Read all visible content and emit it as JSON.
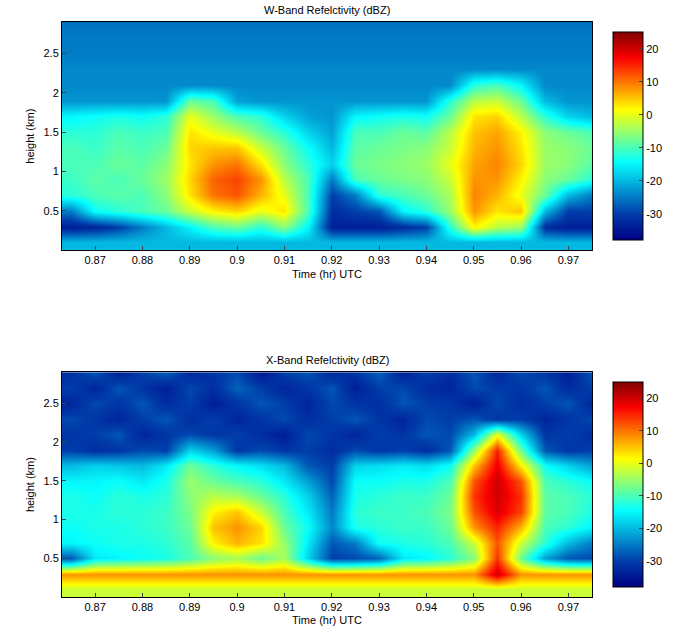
{
  "chart_data": [
    {
      "type": "heatmap",
      "title": "W-Band Refelctivity (dBZ)",
      "x_label": "Time (hr) UTC",
      "y_label": "height (km)",
      "xlim": [
        0.863,
        0.975
      ],
      "xticks": [
        0.87,
        0.88,
        0.89,
        0.9,
        0.91,
        0.92,
        0.93,
        0.94,
        0.95,
        0.96,
        0.97
      ],
      "ylim": [
        0,
        2.9
      ],
      "yticks": [
        0.5,
        1,
        1.5,
        2,
        2.5
      ],
      "zlim": [
        -38,
        25
      ],
      "zticks": [
        -30,
        -20,
        -10,
        0,
        10,
        20
      ],
      "x": [
        0.865,
        0.87,
        0.875,
        0.88,
        0.885,
        0.89,
        0.895,
        0.9,
        0.905,
        0.91,
        0.915,
        0.92,
        0.925,
        0.93,
        0.935,
        0.94,
        0.945,
        0.95,
        0.955,
        0.96,
        0.965,
        0.97,
        0.975
      ],
      "y": [
        0.1,
        0.3,
        0.5,
        0.7,
        0.9,
        1.1,
        1.3,
        1.5,
        1.7,
        1.9,
        2.1,
        2.3,
        2.5,
        2.7,
        2.9
      ],
      "z": [
        [
          -20,
          -20,
          -20,
          -20,
          -20,
          -20,
          -20,
          -20,
          -20,
          -20,
          -20,
          -20,
          -20,
          -20,
          -20,
          -20,
          -20,
          -20,
          -20,
          -20,
          -20,
          -20,
          -20
        ],
        [
          -34,
          -33,
          -30,
          -25,
          -20,
          -15,
          -10,
          -8,
          -12,
          -6,
          -15,
          -34,
          -34,
          -34,
          -32,
          -30,
          -12,
          2,
          -3,
          -5,
          -32,
          -34,
          -34
        ],
        [
          -25,
          -14,
          -12,
          -10,
          -8,
          -2,
          2,
          4,
          0,
          3,
          -10,
          -32,
          -30,
          -28,
          -15,
          -12,
          -5,
          8,
          3,
          5,
          -20,
          -30,
          -30
        ],
        [
          -12,
          -10,
          -9,
          -10,
          -6,
          3,
          10,
          12,
          6,
          0,
          -10,
          -30,
          -25,
          -12,
          -10,
          -8,
          -4,
          9,
          6,
          0,
          -8,
          -20,
          -25
        ],
        [
          -11,
          -9,
          -10,
          -8,
          -5,
          4,
          11,
          13,
          8,
          -3,
          -10,
          -25,
          -10,
          -8,
          -7,
          -6,
          -2,
          8,
          8,
          2,
          -6,
          -8,
          -12
        ],
        [
          -10,
          -10,
          -8,
          -9,
          -6,
          3,
          8,
          10,
          3,
          -6,
          -12,
          -18,
          -8,
          -7,
          -6,
          -5,
          0,
          7,
          9,
          4,
          -5,
          -6,
          -9
        ],
        [
          -10,
          -11,
          -9,
          -10,
          -8,
          4,
          5,
          5,
          -2,
          -8,
          -14,
          -20,
          -9,
          -8,
          -7,
          -6,
          -2,
          6,
          8,
          3,
          -5,
          -6,
          -8
        ],
        [
          -12,
          -12,
          -10,
          -11,
          -10,
          3,
          0,
          -3,
          -8,
          -12,
          -18,
          -22,
          -10,
          -10,
          -8,
          -9,
          -3,
          5,
          7,
          2,
          -6,
          -8,
          -10
        ],
        [
          -15,
          -14,
          -13,
          -14,
          -12,
          0,
          -5,
          -10,
          -12,
          -18,
          -22,
          -23,
          -15,
          -14,
          -13,
          -14,
          -8,
          3,
          4,
          -3,
          -12,
          -18,
          -20
        ],
        [
          -23,
          -23,
          -23,
          -23,
          -23,
          -8,
          -10,
          -22,
          -23,
          -23,
          -23,
          -23,
          -23,
          -23,
          -23,
          -23,
          -12,
          -3,
          -2,
          -8,
          -20,
          -23,
          -23
        ],
        [
          -24,
          -24,
          -24,
          -24,
          -24,
          -24,
          -24,
          -24,
          -24,
          -24,
          -24,
          -24,
          -24,
          -24,
          -24,
          -24,
          -24,
          -12,
          -10,
          -15,
          -24,
          -24,
          -24
        ],
        [
          -24,
          -24,
          -24,
          -24,
          -24,
          -24,
          -24,
          -24,
          -24,
          -24,
          -24,
          -24,
          -24,
          -24,
          -24,
          -24,
          -24,
          -24,
          -24,
          -24,
          -24,
          -24,
          -24
        ],
        [
          -25,
          -25,
          -25,
          -25,
          -25,
          -25,
          -25,
          -25,
          -25,
          -25,
          -25,
          -25,
          -25,
          -25,
          -25,
          -25,
          -25,
          -25,
          -25,
          -25,
          -25,
          -25,
          -25
        ],
        [
          -25,
          -25,
          -25,
          -25,
          -25,
          -25,
          -25,
          -25,
          -25,
          -25,
          -25,
          -25,
          -25,
          -25,
          -25,
          -25,
          -25,
          -25,
          -25,
          -25,
          -25,
          -25,
          -25
        ],
        [
          -26,
          -26,
          -26,
          -26,
          -26,
          -26,
          -26,
          -26,
          -26,
          -26,
          -26,
          -26,
          -26,
          -26,
          -26,
          -26,
          -26,
          -26,
          -26,
          -26,
          -26,
          -26,
          -26
        ]
      ]
    },
    {
      "type": "heatmap",
      "title": "X-Band Refelctivity (dBZ)",
      "x_label": "Time (hr) UTC",
      "y_label": "height (km)",
      "xlim": [
        0.863,
        0.975
      ],
      "xticks": [
        0.87,
        0.88,
        0.89,
        0.9,
        0.91,
        0.92,
        0.93,
        0.94,
        0.95,
        0.96,
        0.97
      ],
      "ylim": [
        0,
        2.9
      ],
      "yticks": [
        0.5,
        1,
        1.5,
        2,
        2.5
      ],
      "zlim": [
        -38,
        25
      ],
      "zticks": [
        -30,
        -20,
        -10,
        0,
        10,
        20
      ],
      "x": [
        0.865,
        0.87,
        0.875,
        0.88,
        0.885,
        0.89,
        0.895,
        0.9,
        0.905,
        0.91,
        0.915,
        0.92,
        0.925,
        0.93,
        0.935,
        0.94,
        0.945,
        0.95,
        0.955,
        0.96,
        0.965,
        0.97,
        0.975
      ],
      "y": [
        0.1,
        0.3,
        0.5,
        0.7,
        0.9,
        1.1,
        1.3,
        1.5,
        1.7,
        1.9,
        2.1,
        2.3,
        2.5,
        2.7,
        2.9
      ],
      "z": [
        [
          -2,
          -2,
          -2,
          -2,
          -2,
          -2,
          -2,
          -2,
          -2,
          -2,
          -2,
          -2,
          -2,
          -2,
          -2,
          -2,
          -2,
          -2,
          -2,
          -2,
          -2,
          -2,
          -2
        ],
        [
          8,
          8,
          8,
          8,
          8,
          8,
          8,
          8,
          8,
          8,
          8,
          8,
          8,
          8,
          8,
          8,
          8,
          8,
          20,
          8,
          8,
          8,
          8
        ],
        [
          -28,
          -16,
          -15,
          -14,
          -13,
          -10,
          -6,
          -4,
          -8,
          -4,
          -18,
          -30,
          -29,
          -27,
          -16,
          -15,
          -12,
          -6,
          14,
          -8,
          -22,
          -28,
          -29
        ],
        [
          -15,
          -14,
          -13,
          -13,
          -12,
          -9,
          2,
          6,
          3,
          -5,
          -16,
          -28,
          -25,
          -14,
          -13,
          -12,
          -10,
          -2,
          12,
          -2,
          -12,
          -20,
          -25
        ],
        [
          -14,
          -13,
          -13,
          -12,
          -11,
          -8,
          5,
          8,
          4,
          -8,
          -14,
          -24,
          -13,
          -12,
          -11,
          -11,
          -8,
          8,
          15,
          6,
          -10,
          -12,
          -15
        ],
        [
          -13,
          -13,
          -12,
          -12,
          -11,
          -7,
          2,
          5,
          -2,
          -10,
          -16,
          -25,
          -12,
          -11,
          -11,
          -10,
          -7,
          12,
          19,
          13,
          -9,
          -10,
          -13
        ],
        [
          -13,
          -14,
          -12,
          -13,
          -12,
          -6,
          -3,
          -4,
          -8,
          -12,
          -18,
          -27,
          -13,
          -12,
          -11,
          -11,
          -8,
          14,
          20,
          14,
          -9,
          -10,
          -12
        ],
        [
          -15,
          -15,
          -14,
          -16,
          -13,
          -5,
          -8,
          -10,
          -12,
          -16,
          -22,
          -29,
          -14,
          -14,
          -13,
          -13,
          -10,
          12,
          20,
          12,
          -10,
          -12,
          -14
        ],
        [
          -20,
          -18,
          -19,
          -20,
          -16,
          -8,
          -12,
          -15,
          -17,
          -20,
          -28,
          -30,
          -18,
          -17,
          -16,
          -17,
          -14,
          5,
          18,
          2,
          -14,
          -18,
          -22
        ],
        [
          -30,
          -32,
          -31,
          -29,
          -30,
          -18,
          -22,
          -31,
          -29,
          -31,
          -30,
          -32,
          -29,
          -31,
          -30,
          -32,
          -28,
          -5,
          15,
          -8,
          -28,
          -31,
          -30
        ],
        [
          -31,
          -30,
          -28,
          -33,
          -31,
          -29,
          -31,
          -30,
          -32,
          -34,
          -29,
          -31,
          -33,
          -30,
          -31,
          -28,
          -29,
          -20,
          0,
          -18,
          -31,
          -30,
          -32
        ],
        [
          -29,
          -31,
          -33,
          -30,
          -28,
          -32,
          -30,
          -33,
          -31,
          -29,
          -32,
          -30,
          -28,
          -31,
          -33,
          -29,
          -30,
          -28,
          -31,
          -30,
          -33,
          -31,
          -29
        ],
        [
          -33,
          -29,
          -31,
          -28,
          -32,
          -30,
          -34,
          -31,
          -28,
          -30,
          -33,
          -29,
          -31,
          -32,
          -28,
          -30,
          -31,
          -34,
          -29,
          -32,
          -30,
          -28,
          -33
        ],
        [
          -30,
          -33,
          -28,
          -31,
          -34,
          -29,
          -32,
          -27,
          -30,
          -33,
          -31,
          -28,
          -34,
          -30,
          -29,
          -32,
          -33,
          -29,
          -30,
          -31,
          -28,
          -32,
          -30
        ],
        [
          -32,
          -28,
          -34,
          -30,
          -27,
          -33,
          -31,
          -29,
          -35,
          -30,
          -28,
          -33,
          -31,
          -27,
          -34,
          -30,
          -32,
          -28,
          -33,
          -29,
          -31,
          -34,
          -28
        ]
      ]
    }
  ]
}
